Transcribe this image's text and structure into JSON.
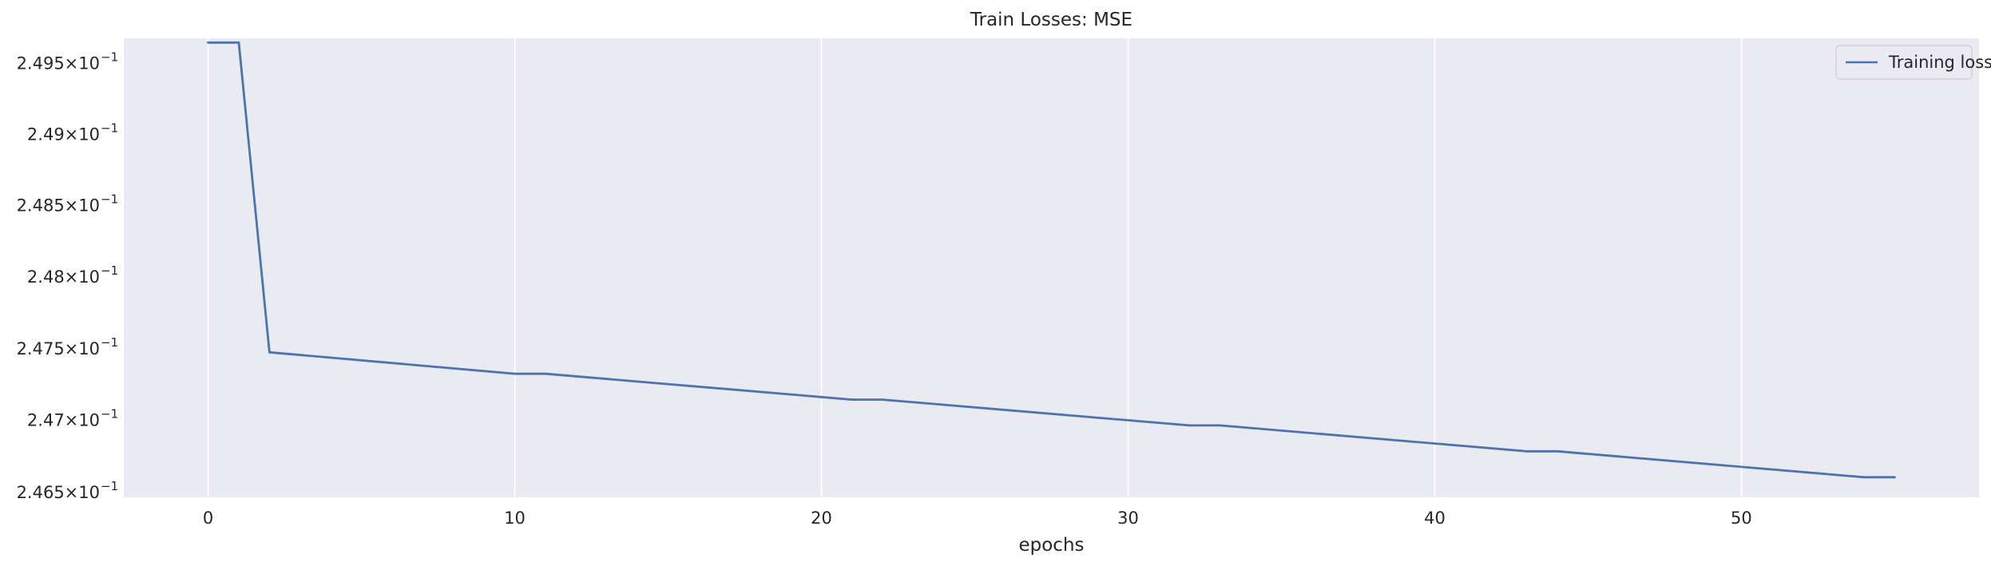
{
  "chart_data": {
    "type": "line",
    "title": "Train Losses:  MSE",
    "xlabel": "epochs",
    "ylabel": "",
    "xlim": [
      -2.75,
      57.75
    ],
    "ylim": [
      0.24646,
      0.24967
    ],
    "yscale": "log",
    "grid": "vertical",
    "legend_position": "top-right",
    "x_ticks": [
      0,
      10,
      20,
      30,
      40,
      50
    ],
    "y_ticks": [
      {
        "value": 0.2465,
        "mantissa": "2.465",
        "base": "10",
        "exp": "−1"
      },
      {
        "value": 0.247,
        "mantissa": "2.47",
        "base": "10",
        "exp": "−1"
      },
      {
        "value": 0.2475,
        "mantissa": "2.475",
        "base": "10",
        "exp": "−1"
      },
      {
        "value": 0.248,
        "mantissa": "2.48",
        "base": "10",
        "exp": "−1"
      },
      {
        "value": 0.2485,
        "mantissa": "2.485",
        "base": "10",
        "exp": "−1"
      },
      {
        "value": 0.249,
        "mantissa": "2.49",
        "base": "10",
        "exp": "−1"
      },
      {
        "value": 0.2495,
        "mantissa": "2.495",
        "base": "10",
        "exp": "−1"
      }
    ],
    "colors": {
      "figure_bg": "#ffffff",
      "axes_bg": "#eaeaf2",
      "grid": "#ffffff",
      "line": "#4c72b0",
      "legend_border": "#cccccc"
    },
    "series": [
      {
        "name": "Training loss",
        "x": [
          0,
          1,
          2,
          10,
          11,
          21,
          22,
          32,
          33,
          43,
          44,
          54,
          55
        ],
        "y": [
          0.24964,
          0.24964,
          0.24747,
          0.24732,
          0.24732,
          0.24714,
          0.24714,
          0.24696,
          0.24696,
          0.24678,
          0.24678,
          0.2466,
          0.2466
        ]
      }
    ]
  }
}
